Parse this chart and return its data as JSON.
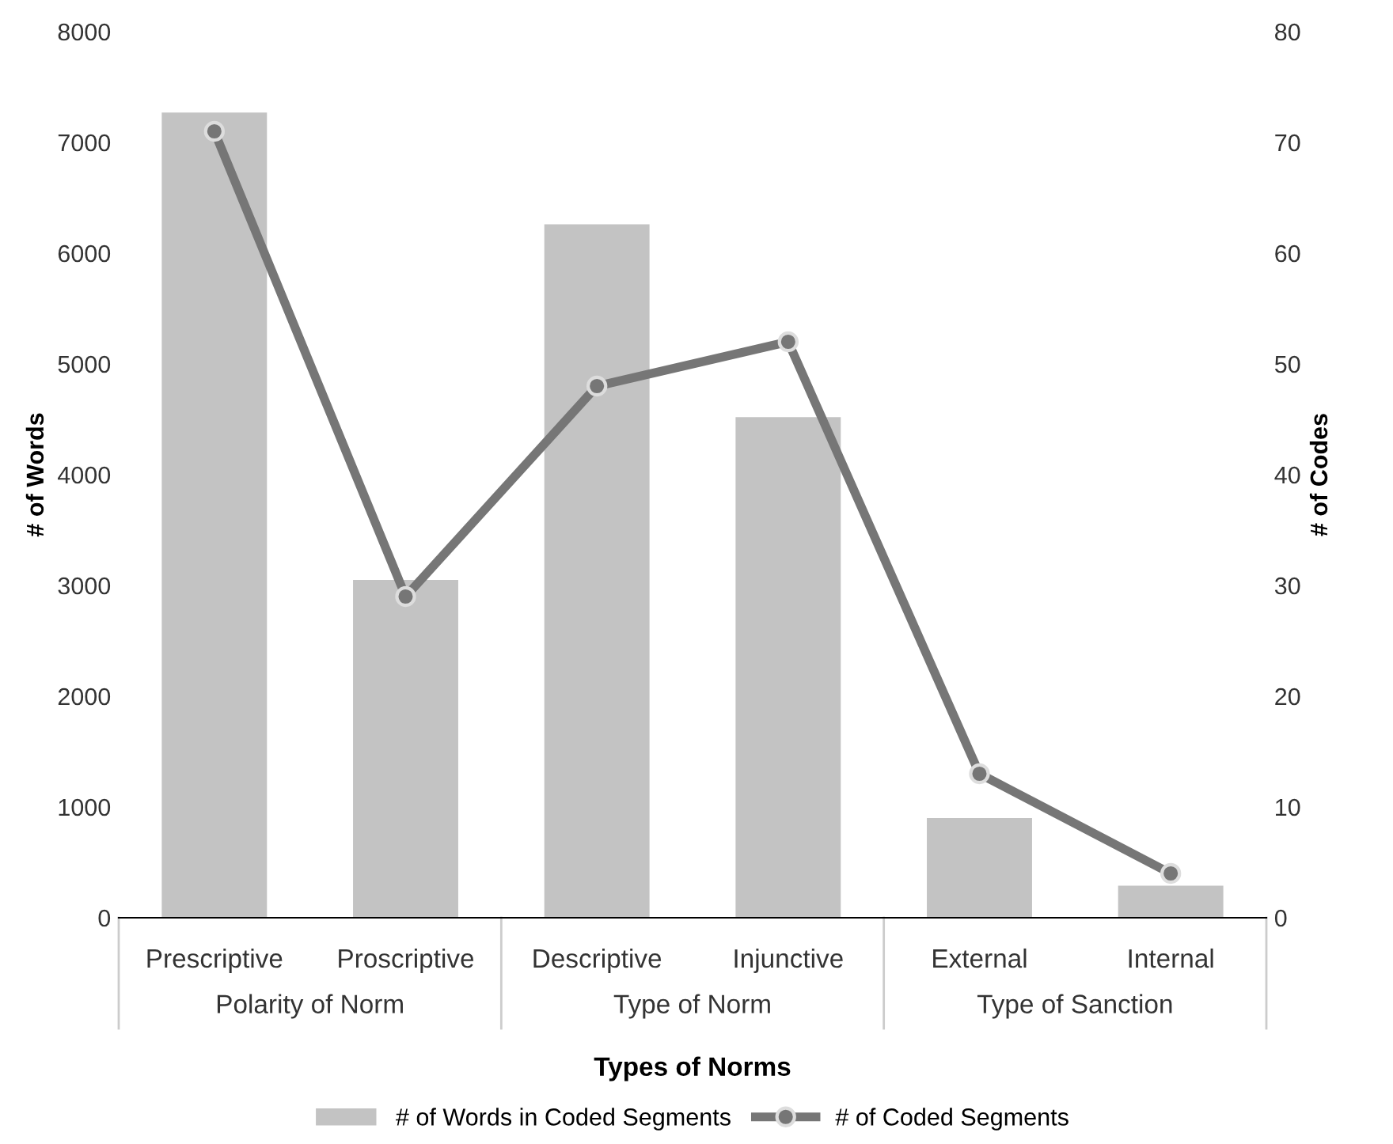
{
  "chart_data": {
    "type": "bar",
    "xlabel": "Types of Norms",
    "ylabel": "# of Words",
    "y2label": "# of Codes",
    "categories": [
      "Prescriptive",
      "Proscriptive",
      "Descriptive",
      "Injunctive",
      "External",
      "Internal"
    ],
    "series": [
      {
        "name": "# of Words in Coded Segments",
        "color": "#c3c3c3",
        "values": [
          7270,
          3050,
          6260,
          4520,
          900,
          290
        ]
      },
      {
        "name": "# of Coded Segments",
        "type": "line",
        "axis": "y2",
        "color": "#767676",
        "marker": "circle",
        "values": [
          71,
          29,
          48,
          52,
          13,
          4
        ]
      }
    ],
    "ylim": [
      0,
      8000
    ],
    "yticks": [
      0,
      1000,
      2000,
      3000,
      4000,
      5000,
      6000,
      7000,
      8000
    ],
    "y2lim": [
      0,
      80
    ],
    "y2ticks": [
      0,
      10,
      20,
      30,
      40,
      50,
      60,
      70,
      80
    ],
    "annotations": [
      "Polarity of Norm",
      "Type of Norm",
      "Type of Sanction"
    ],
    "legend": "bottom"
  }
}
